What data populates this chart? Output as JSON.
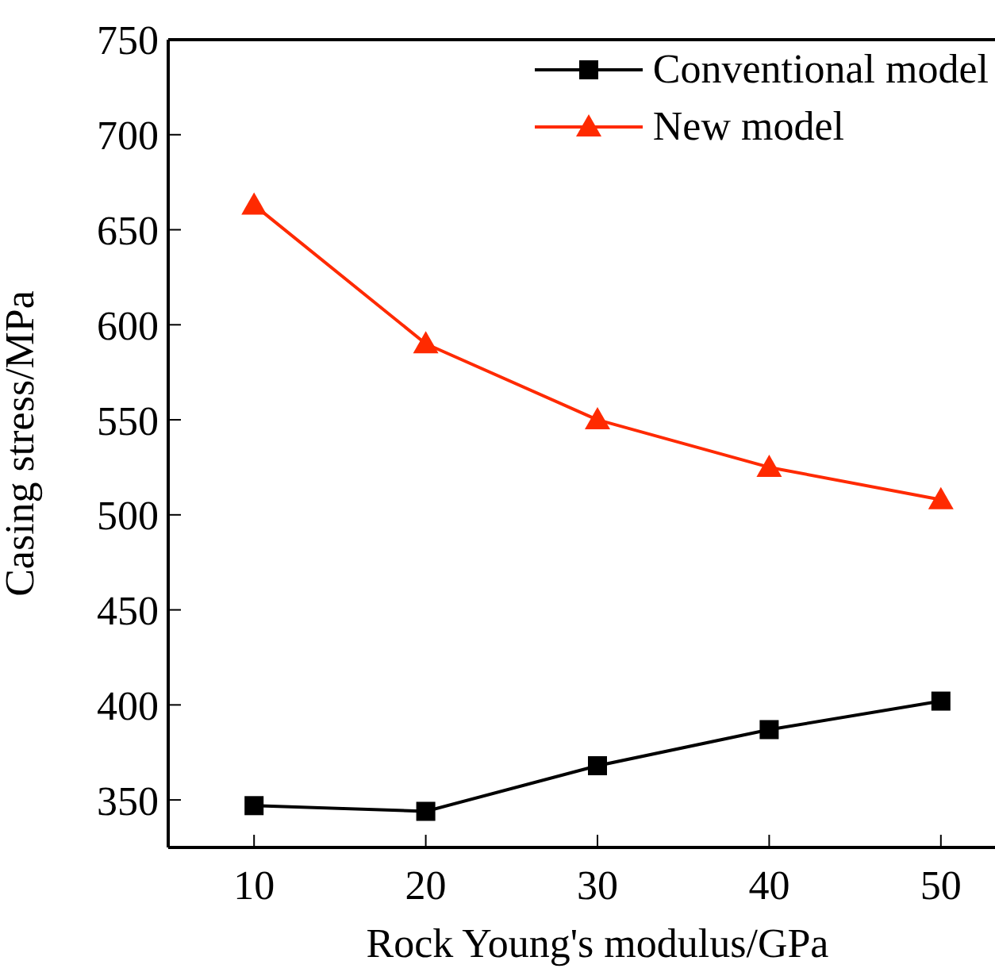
{
  "chart_data": {
    "type": "line",
    "xlabel": "Rock Young's modulus/GPa",
    "ylabel": "Casing stress/MPa",
    "x": [
      10,
      20,
      30,
      40,
      50
    ],
    "series": [
      {
        "name": "Conventional model",
        "color": "#000000",
        "marker": "square",
        "values": [
          347,
          344,
          368,
          387,
          402
        ]
      },
      {
        "name": "New model",
        "color": "#ff2a00",
        "marker": "triangle",
        "values": [
          663,
          590,
          550,
          525,
          508
        ]
      }
    ],
    "xlim": [
      5,
      55
    ],
    "xticks": [
      10,
      20,
      30,
      40,
      50
    ],
    "ylim": [
      325,
      750
    ],
    "yticks": [
      350,
      400,
      450,
      500,
      550,
      600,
      650,
      700,
      750
    ],
    "legend": "top right",
    "grid": false,
    "line_style": "solid"
  }
}
